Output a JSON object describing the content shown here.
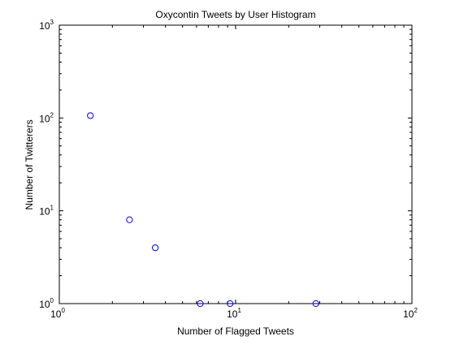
{
  "chart_data": {
    "type": "scatter",
    "title": "Oxycontin Tweets by User Histogram",
    "xlabel": "Number of Flagged Tweets",
    "ylabel": "Number of Twitterers",
    "xscale": "log",
    "yscale": "log",
    "xlim": [
      1,
      100
    ],
    "ylim": [
      1,
      1000
    ],
    "x_ticks": [
      {
        "value": 1,
        "base": "10",
        "exp": "0"
      },
      {
        "value": 10,
        "base": "10",
        "exp": "1"
      },
      {
        "value": 100,
        "base": "10",
        "exp": "2"
      }
    ],
    "y_ticks": [
      {
        "value": 1,
        "base": "10",
        "exp": "0"
      },
      {
        "value": 10,
        "base": "10",
        "exp": "1"
      },
      {
        "value": 100,
        "base": "10",
        "exp": "2"
      },
      {
        "value": 1000,
        "base": "10",
        "exp": "3"
      }
    ],
    "grid": false,
    "marker": "open-circle",
    "marker_color": "#0000ff",
    "points": [
      {
        "x": 1.5,
        "y": 106
      },
      {
        "x": 2.5,
        "y": 8
      },
      {
        "x": 3.5,
        "y": 4
      },
      {
        "x": 6.3,
        "y": 1
      },
      {
        "x": 9.3,
        "y": 1
      },
      {
        "x": 28.5,
        "y": 1
      }
    ]
  }
}
